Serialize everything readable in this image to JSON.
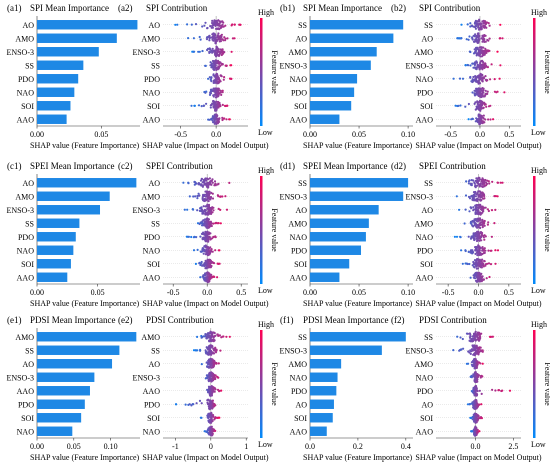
{
  "figure": {
    "feature_colorbar": {
      "high_label": "High",
      "low_label": "Low",
      "title": "Feature value",
      "high_color": "#ff0052",
      "low_color": "#008bfb"
    },
    "bar_color": "#1e88e5"
  },
  "chart_data": [
    {
      "id": "a1",
      "type": "bar",
      "panel_label": "(a1)",
      "title": "SPI Mean Importance",
      "xlabel": "SHAP value (Feature Importance)",
      "categories": [
        "AO",
        "AMO",
        "ENSO-3",
        "SS",
        "PDO",
        "NAO",
        "SOI",
        "AAO"
      ],
      "values": [
        0.078,
        0.062,
        0.048,
        0.036,
        0.032,
        0.029,
        0.026,
        0.023
      ],
      "xlim": [
        0,
        0.08
      ],
      "xticks": [
        0.0,
        0.05
      ],
      "xtick_labels": [
        "0.00",
        "0.05"
      ]
    },
    {
      "id": "a2",
      "type": "scatter",
      "panel_label": "(a2)",
      "title": "SPI Contribution",
      "xlabel": "SHAP value (Impact on Model Output)",
      "categories": [
        "AO",
        "AMO",
        "ENSO-3",
        "SS",
        "PDO",
        "NAO",
        "SOI",
        "AAO"
      ],
      "spread": [
        [
          -0.6,
          0.35
        ],
        [
          -0.45,
          0.3
        ],
        [
          -0.35,
          0.28
        ],
        [
          -0.25,
          0.22
        ],
        [
          -0.2,
          0.25
        ],
        [
          -0.25,
          0.2
        ],
        [
          -0.35,
          0.18
        ],
        [
          -0.15,
          0.2
        ]
      ],
      "xlim": [
        -0.75,
        0.45
      ],
      "xticks": [
        -0.5,
        0.0
      ],
      "xtick_labels": [
        "-0.5",
        "0.0"
      ]
    },
    {
      "id": "b1",
      "type": "bar",
      "panel_label": "(b1)",
      "title": "SPI Mean Importance",
      "xlabel": "SHAP value (Feature Importance)",
      "categories": [
        "SS",
        "AO",
        "AMO",
        "ENSO-3",
        "NAO",
        "PDO",
        "SOI",
        "AAO"
      ],
      "values": [
        0.095,
        0.085,
        0.068,
        0.062,
        0.048,
        0.045,
        0.042,
        0.03
      ],
      "xlim": [
        0,
        0.105
      ],
      "xticks": [
        0.0,
        0.05,
        0.1
      ],
      "xtick_labels": [
        "0.00",
        "0.05",
        "0.10"
      ]
    },
    {
      "id": "b2",
      "type": "scatter",
      "panel_label": "(b2)",
      "title": "SPI Contribution",
      "xlabel": "SHAP value (Impact on Model Output)",
      "categories": [
        "SS",
        "AO",
        "AMO",
        "ENSO-3",
        "NAO",
        "PDO",
        "SOI",
        "AAO"
      ],
      "spread": [
        [
          -0.35,
          0.35
        ],
        [
          -0.4,
          0.4
        ],
        [
          -0.3,
          0.3
        ],
        [
          -0.3,
          0.35
        ],
        [
          -0.45,
          0.35
        ],
        [
          -0.3,
          0.45
        ],
        [
          -0.5,
          0.25
        ],
        [
          -0.2,
          0.25
        ]
      ],
      "xlim": [
        -0.75,
        0.7
      ],
      "xticks": [
        -0.5,
        0.0,
        0.5
      ],
      "xtick_labels": [
        "-0.5",
        "0.0",
        "0.5"
      ]
    },
    {
      "id": "c1",
      "type": "bar",
      "panel_label": "(c1)",
      "title": "SPEI Mean Importance",
      "xlabel": "SHAP value (Feature Importance)",
      "categories": [
        "AO",
        "AMO",
        "ENSO-3",
        "SS",
        "PDO",
        "NAO",
        "SOI",
        "AAO"
      ],
      "values": [
        0.082,
        0.06,
        0.052,
        0.035,
        0.032,
        0.03,
        0.028,
        0.025
      ],
      "xlim": [
        0,
        0.085
      ],
      "xticks": [
        0.0,
        0.05
      ],
      "xtick_labels": [
        "0.00",
        "0.05"
      ]
    },
    {
      "id": "c2",
      "type": "scatter",
      "panel_label": "(c2)",
      "title": "SPEI Contribution",
      "xlabel": "SHAP value (Impact on Model Output)",
      "categories": [
        "AO",
        "AMO",
        "ENSO-3",
        "SS",
        "PDO",
        "NAO",
        "SOI",
        "AAO"
      ],
      "spread": [
        [
          -0.45,
          0.45
        ],
        [
          -0.35,
          0.3
        ],
        [
          -0.35,
          0.3
        ],
        [
          -0.2,
          0.2
        ],
        [
          -0.3,
          0.2
        ],
        [
          -0.2,
          0.2
        ],
        [
          -0.2,
          0.2
        ],
        [
          -0.15,
          0.15
        ]
      ],
      "xlim": [
        -0.65,
        0.6
      ],
      "xticks": [
        -0.5,
        0.0,
        0.5
      ],
      "xtick_labels": [
        "-0.5",
        "0.0",
        "0.5"
      ]
    },
    {
      "id": "d1",
      "type": "bar",
      "panel_label": "(d1)",
      "title": "SPEI Mean Importance",
      "xlabel": "SHAP value (Feature Importance)",
      "categories": [
        "SS",
        "ENSO-3",
        "AO",
        "AMO",
        "NAO",
        "PDO",
        "SOI",
        "AAO"
      ],
      "values": [
        0.1,
        0.095,
        0.07,
        0.06,
        0.057,
        0.052,
        0.04,
        0.03
      ],
      "xlim": [
        0,
        0.105
      ],
      "xticks": [
        0.0,
        0.05,
        0.1
      ],
      "xtick_labels": [
        "0.00",
        "0.05",
        "0.10"
      ]
    },
    {
      "id": "d2",
      "type": "scatter",
      "panel_label": "(d2)",
      "title": "SPEI Contribution",
      "xlabel": "SHAP value (Impact on Model Output)",
      "categories": [
        "SS",
        "ENSO-3",
        "AO",
        "AMO",
        "NAO",
        "PDO",
        "SOI",
        "AAO"
      ],
      "spread": [
        [
          -0.4,
          0.4
        ],
        [
          -0.4,
          0.35
        ],
        [
          -0.35,
          0.35
        ],
        [
          -0.3,
          0.3
        ],
        [
          -0.4,
          0.3
        ],
        [
          -0.35,
          0.35
        ],
        [
          -0.3,
          0.3
        ],
        [
          -0.25,
          0.3
        ]
      ],
      "xlim": [
        -0.7,
        0.7
      ],
      "xticks": [
        -0.5,
        0.0,
        0.5
      ],
      "xtick_labels": [
        "-0.5",
        "0.0",
        "0.5"
      ]
    },
    {
      "id": "e1",
      "type": "bar",
      "panel_label": "(e1)",
      "title": "PDSI Mean Importance",
      "xlabel": "SHAP value (Feature Importance)",
      "categories": [
        "AMO",
        "SS",
        "AO",
        "ENSO-3",
        "AAO",
        "PDO",
        "SOI",
        "NAO"
      ],
      "values": [
        0.135,
        0.112,
        0.102,
        0.078,
        0.072,
        0.065,
        0.06,
        0.048
      ],
      "xlim": [
        0,
        0.14
      ],
      "xticks": [
        0.0,
        0.05,
        0.1
      ],
      "xtick_labels": [
        "0.00",
        "0.05",
        "0.10"
      ]
    },
    {
      "id": "e2",
      "type": "scatter",
      "panel_label": "(e2)",
      "title": "PDSI Contribution",
      "xlabel": "SHAP value (Impact on Model Output)",
      "categories": [
        "AMO",
        "SS",
        "AO",
        "ENSO-3",
        "AAO",
        "PDO",
        "SOI",
        "NAO"
      ],
      "spread": [
        [
          -0.45,
          0.55
        ],
        [
          -0.5,
          0.4
        ],
        [
          -0.35,
          0.3
        ],
        [
          -0.3,
          0.3
        ],
        [
          -0.25,
          0.35
        ],
        [
          -1.1,
          0.25
        ],
        [
          -0.3,
          0.25
        ],
        [
          -0.2,
          0.2
        ]
      ],
      "xlim": [
        -1.35,
        1.05
      ],
      "xticks": [
        -1,
        0,
        1
      ],
      "xtick_labels": [
        "-1",
        "0",
        "1"
      ]
    },
    {
      "id": "f1",
      "type": "bar",
      "panel_label": "(f1)",
      "title": "PDSI Mean Importance",
      "xlabel": "SHAP value (Feature Importance)",
      "categories": [
        "SS",
        "ENSO-3",
        "AMO",
        "NAO",
        "PDO",
        "AO",
        "SOI",
        "AAO"
      ],
      "values": [
        0.4,
        0.3,
        0.13,
        0.115,
        0.11,
        0.1,
        0.095,
        0.07
      ],
      "xlim": [
        0,
        0.43
      ],
      "xticks": [
        0.0,
        0.2,
        0.4
      ],
      "xtick_labels": [
        "0.0",
        "0.2",
        "0.4"
      ]
    },
    {
      "id": "f2",
      "type": "scatter",
      "panel_label": "(f2)",
      "title": "PDSI Contribution",
      "xlabel": "SHAP value (Impact on Model Output)",
      "categories": [
        "SS",
        "ENSO-3",
        "AMO",
        "NAO",
        "PDO",
        "AO",
        "SOI",
        "AAO"
      ],
      "spread": [
        [
          -2.2,
          1.2
        ],
        [
          -1.8,
          1.0
        ],
        [
          -0.6,
          0.5
        ],
        [
          -0.5,
          0.8
        ],
        [
          -0.4,
          2.5
        ],
        [
          -0.5,
          0.4
        ],
        [
          -0.4,
          0.6
        ],
        [
          -0.3,
          0.3
        ]
      ],
      "xlim": [
        -2.6,
        3.0
      ],
      "xticks": [
        0.0,
        2.5
      ],
      "xtick_labels": [
        "0.0",
        "2.5"
      ]
    }
  ]
}
